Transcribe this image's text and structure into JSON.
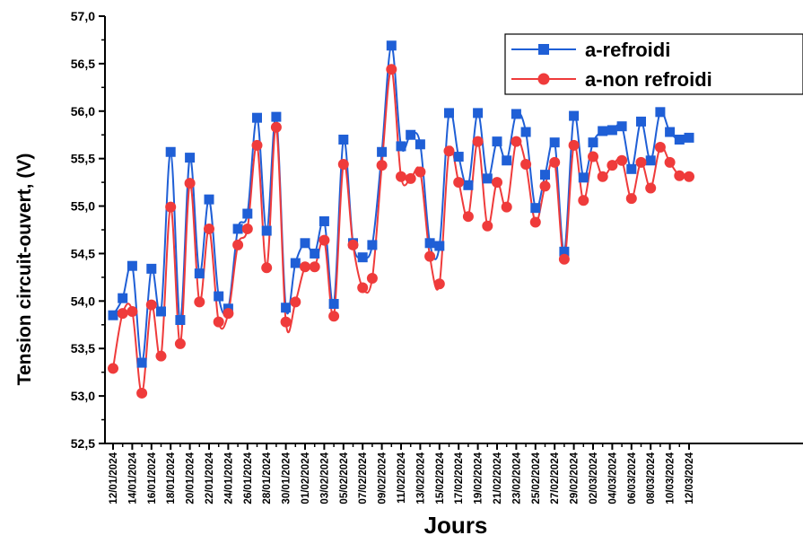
{
  "chart_data": {
    "type": "line",
    "title": "",
    "xlabel": "Jours",
    "ylabel": "Tension circuit-ouvert, (V)",
    "ylim": [
      52.5,
      57.0
    ],
    "yticks": [
      "52,5",
      "53,0",
      "53,5",
      "54,0",
      "54,5",
      "55,0",
      "55,5",
      "56,0",
      "56,5",
      "57,0"
    ],
    "x": [
      "12/01/2024",
      "13/01/2024",
      "14/01/2024",
      "15/01/2024",
      "16/01/2024",
      "17/01/2024",
      "18/01/2024",
      "19/01/2024",
      "20/01/2024",
      "21/01/2024",
      "22/01/2024",
      "23/01/2024",
      "24/01/2024",
      "25/01/2024",
      "26/01/2024",
      "27/01/2024",
      "28/01/2024",
      "29/01/2024",
      "30/01/2024",
      "31/01/2024",
      "01/02/2024",
      "02/02/2024",
      "03/02/2024",
      "04/02/2024",
      "05/02/2024",
      "06/02/2024",
      "07/02/2024",
      "08/02/2024",
      "09/02/2024",
      "10/02/2024",
      "11/02/2024",
      "12/02/2024",
      "13/02/2024",
      "14/02/2024",
      "15/02/2024",
      "16/02/2024",
      "17/02/2024",
      "18/02/2024",
      "19/02/2024",
      "20/02/2024",
      "21/02/2024",
      "22/02/2024",
      "23/02/2024",
      "24/02/2024",
      "25/02/2024",
      "26/02/2024",
      "27/02/2024",
      "28/02/2024",
      "29/02/2024",
      "01/03/2024",
      "02/03/2024",
      "03/03/2024",
      "04/03/2024",
      "05/03/2024",
      "06/03/2024",
      "07/03/2024",
      "08/03/2024",
      "09/03/2024",
      "10/03/2024",
      "11/03/2024",
      "12/03/2024"
    ],
    "xticks": [
      "12/01/2024",
      "14/01/2024",
      "16/01/2024",
      "18/01/2024",
      "20/01/2024",
      "22/01/2024",
      "24/01/2024",
      "26/01/2024",
      "28/01/2024",
      "30/01/2024",
      "01/02/2024",
      "03/02/2024",
      "05/02/2024",
      "07/02/2024",
      "09/02/2024",
      "11/02/2024",
      "13/02/2024",
      "15/02/2024",
      "17/02/2024",
      "19/02/2024",
      "21/02/2024",
      "23/02/2024",
      "25/02/2024",
      "27/02/2024",
      "29/02/2024",
      "02/03/2024",
      "04/03/2024",
      "06/03/2024",
      "08/03/2024",
      "10/03/2024",
      "12/03/2024"
    ],
    "legend_position": "top-right",
    "grid": false,
    "series": [
      {
        "name": "a-refroidi",
        "color": "#1f5fd6",
        "marker": "square",
        "values": [
          53.85,
          54.03,
          54.37,
          53.35,
          54.34,
          53.89,
          55.57,
          53.8,
          55.51,
          54.29,
          55.07,
          54.05,
          53.92,
          54.76,
          54.92,
          55.93,
          54.74,
          55.94,
          53.93,
          54.4,
          54.61,
          54.5,
          54.84,
          53.97,
          55.7,
          54.61,
          54.46,
          54.59,
          55.57,
          56.69,
          55.63,
          55.75,
          55.65,
          54.61,
          54.58,
          55.98,
          55.52,
          55.22,
          55.98,
          55.29,
          55.68,
          55.48,
          55.97,
          55.78,
          54.98,
          55.33,
          55.67,
          54.52,
          55.95,
          55.3,
          55.67,
          55.79,
          55.8,
          55.84,
          55.39,
          55.89,
          55.48,
          55.99,
          55.78,
          55.7,
          55.72
        ]
      },
      {
        "name": "a-non refroidi",
        "color": "#ef3b3b",
        "marker": "circle",
        "values": [
          53.29,
          53.87,
          53.89,
          53.03,
          53.96,
          53.42,
          54.99,
          53.55,
          55.24,
          53.99,
          54.76,
          53.78,
          53.87,
          54.59,
          54.76,
          55.64,
          54.35,
          55.83,
          53.78,
          53.99,
          54.36,
          54.36,
          54.64,
          53.84,
          55.44,
          54.59,
          54.14,
          54.24,
          55.43,
          56.44,
          55.31,
          55.29,
          55.36,
          54.47,
          54.18,
          55.58,
          55.25,
          54.89,
          55.68,
          54.79,
          55.25,
          54.99,
          55.68,
          55.44,
          54.83,
          55.21,
          55.46,
          54.44,
          55.64,
          55.06,
          55.52,
          55.31,
          55.43,
          55.48,
          55.08,
          55.46,
          55.19,
          55.62,
          55.46,
          55.32,
          55.31
        ]
      }
    ]
  }
}
